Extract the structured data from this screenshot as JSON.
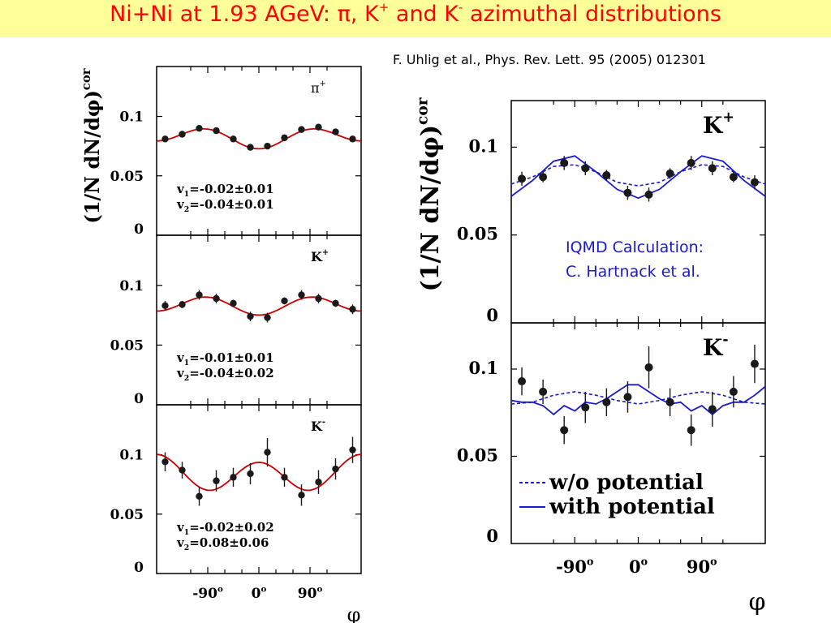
{
  "title": {
    "main": "Ni+Ni at 1.93 AGeV: π,  K",
    "k_plus_sup": "+",
    "middle": " and K",
    "k_minus_sup": "-",
    "tail": " azimuthal distributions"
  },
  "citation": "F. Uhlig et al., Phys. Rev. Lett. 95 (2005) 012301",
  "colors": {
    "title_bg": "#ffff99",
    "title_text": "#ff0000",
    "fit": "#cc0000",
    "model": "#1a1acc",
    "points": "#1a1a1a"
  },
  "chart_data": [
    {
      "type": "scatter",
      "panel": "left-pi-plus",
      "label_base": "π",
      "label_sup": "+",
      "ylabel": "(1/N dN/dφ)",
      "ylabel_sup": "cor",
      "yticks": [
        "0.1",
        "0.05",
        "0"
      ],
      "ytick_values": [
        0.1,
        0.05,
        0
      ],
      "ylim": [
        0,
        0.142
      ],
      "xlim": [
        -180,
        180
      ],
      "annotations": [
        "v",
        "1",
        "=-0.02±0.01",
        "v",
        "2",
        "=-0.04±0.01"
      ],
      "x": [
        -165,
        -135,
        -105,
        -75,
        -45,
        -15,
        15,
        45,
        75,
        105,
        135,
        165
      ],
      "values": [
        0.081,
        0.085,
        0.09,
        0.088,
        0.081,
        0.074,
        0.075,
        0.082,
        0.089,
        0.091,
        0.087,
        0.081
      ],
      "errors": [
        0.002,
        0.002,
        0.002,
        0.002,
        0.002,
        0.002,
        0.002,
        0.002,
        0.002,
        0.002,
        0.002,
        0.002
      ],
      "fit": {
        "name": "",
        "v1": -0.02,
        "v2": -0.04,
        "norm": 0.0827
      }
    },
    {
      "type": "scatter",
      "panel": "left-k-plus",
      "label_base": "K",
      "label_sup": "+",
      "yticks": [
        "0.1",
        "0.05",
        "0"
      ],
      "ytick_values": [
        0.1,
        0.05,
        0
      ],
      "ylim": [
        0,
        0.142
      ],
      "xlim": [
        -180,
        180
      ],
      "annotations": [
        "v",
        "1",
        "=-0.01±0.01",
        "v",
        "2",
        "=-0.04±0.02"
      ],
      "x": [
        -165,
        -135,
        -105,
        -75,
        -45,
        -15,
        15,
        45,
        75,
        105,
        135,
        165
      ],
      "values": [
        0.083,
        0.084,
        0.092,
        0.089,
        0.085,
        0.074,
        0.073,
        0.087,
        0.092,
        0.089,
        0.085,
        0.08
      ],
      "errors": [
        0.004,
        0.003,
        0.004,
        0.004,
        0.003,
        0.004,
        0.004,
        0.003,
        0.004,
        0.004,
        0.003,
        0.004
      ],
      "fit": {
        "name": "",
        "v1": -0.01,
        "v2": -0.04,
        "norm": 0.0835
      }
    },
    {
      "type": "scatter",
      "panel": "left-k-minus",
      "label_base": "K",
      "label_sup": "-",
      "yticks": [
        "0.1",
        "0.05",
        "0"
      ],
      "ytick_values": [
        0.1,
        0.05,
        0
      ],
      "ylim": [
        0,
        0.142
      ],
      "xlim": [
        -180,
        180
      ],
      "xticks": [
        "-90",
        "0",
        "90"
      ],
      "xtick_values": [
        -90,
        0,
        90
      ],
      "xtick_sup": "o",
      "xlabel": "φ",
      "annotations": [
        "v",
        "1",
        "=-0.02±0.02",
        "v",
        "2",
        "=0.08±0.06"
      ],
      "x": [
        -165,
        -135,
        -105,
        -75,
        -45,
        -15,
        15,
        45,
        75,
        105,
        135,
        165
      ],
      "values": [
        0.094,
        0.087,
        0.065,
        0.078,
        0.081,
        0.084,
        0.102,
        0.081,
        0.066,
        0.077,
        0.088,
        0.104
      ],
      "errors": [
        0.008,
        0.007,
        0.008,
        0.009,
        0.008,
        0.009,
        0.012,
        0.008,
        0.009,
        0.01,
        0.009,
        0.011
      ],
      "fit": {
        "name": "",
        "v1": -0.02,
        "v2": 0.08,
        "norm": 0.0835
      }
    },
    {
      "type": "line",
      "panel": "right-k-plus",
      "label_base": "K",
      "label_sup": "+",
      "ylabel": "(1/N dN/dφ)",
      "ylabel_sup": "cor",
      "yticks": [
        "0.1",
        "0.05",
        "0"
      ],
      "ytick_values": [
        0.1,
        0.05,
        0
      ],
      "ylim": [
        0,
        0.1265
      ],
      "xlim": [
        -180,
        180
      ],
      "annotations": [
        "IQMD Calculation:",
        "C. Hartnack et al."
      ],
      "x": [
        -165,
        -135,
        -105,
        -75,
        -45,
        -15,
        15,
        45,
        75,
        105,
        135,
        165
      ],
      "values": [
        0.082,
        0.083,
        0.091,
        0.088,
        0.084,
        0.074,
        0.073,
        0.085,
        0.091,
        0.088,
        0.083,
        0.08
      ],
      "errors": [
        0.004,
        0.003,
        0.004,
        0.004,
        0.003,
        0.004,
        0.004,
        0.003,
        0.004,
        0.004,
        0.003,
        0.004
      ],
      "series": [
        {
          "name": "w/o potential",
          "style": "dashed",
          "x": [
            -180,
            -150,
            -120,
            -90,
            -60,
            -30,
            0,
            30,
            60,
            90,
            120,
            150,
            180
          ],
          "values": [
            0.079,
            0.083,
            0.089,
            0.09,
            0.086,
            0.08,
            0.078,
            0.08,
            0.086,
            0.09,
            0.089,
            0.083,
            0.079
          ]
        },
        {
          "name": "with potential",
          "style": "solid",
          "x": [
            -180,
            -150,
            -120,
            -90,
            -60,
            -30,
            0,
            30,
            60,
            90,
            120,
            150,
            180
          ],
          "values": [
            0.072,
            0.081,
            0.092,
            0.095,
            0.086,
            0.076,
            0.071,
            0.076,
            0.086,
            0.095,
            0.092,
            0.081,
            0.072
          ]
        }
      ]
    },
    {
      "type": "line",
      "panel": "right-k-minus",
      "label_base": "K",
      "label_sup": "-",
      "yticks": [
        "0.1",
        "0.05",
        "0"
      ],
      "ytick_values": [
        0.1,
        0.05,
        0
      ],
      "ylim": [
        0,
        0.1265
      ],
      "xlim": [
        -180,
        180
      ],
      "xticks": [
        "-90",
        "0",
        "90"
      ],
      "xtick_values": [
        -90,
        0,
        90
      ],
      "xtick_sup": "o",
      "xlabel": "φ",
      "legend": [
        "w/o potential",
        "with potential"
      ],
      "legend_placement": "bottom-left",
      "x": [
        -165,
        -135,
        -105,
        -75,
        -45,
        -15,
        15,
        45,
        75,
        105,
        135,
        165
      ],
      "values": [
        0.093,
        0.087,
        0.065,
        0.078,
        0.081,
        0.084,
        0.101,
        0.081,
        0.065,
        0.077,
        0.087,
        0.103
      ],
      "errors": [
        0.008,
        0.007,
        0.008,
        0.009,
        0.008,
        0.009,
        0.012,
        0.008,
        0.009,
        0.01,
        0.009,
        0.011
      ],
      "series": [
        {
          "name": "w/o potential",
          "style": "dashed",
          "x": [
            -180,
            -150,
            -120,
            -90,
            -60,
            -30,
            0,
            30,
            60,
            90,
            120,
            150,
            180
          ],
          "values": [
            0.08,
            0.081,
            0.085,
            0.087,
            0.085,
            0.082,
            0.08,
            0.082,
            0.085,
            0.087,
            0.085,
            0.081,
            0.08
          ]
        },
        {
          "name": "with potential",
          "style": "solid",
          "x": [
            -180,
            -165,
            -150,
            -135,
            -120,
            -105,
            -90,
            -75,
            -60,
            -45,
            -30,
            -15,
            0,
            15,
            30,
            45,
            60,
            75,
            90,
            105,
            120,
            135,
            150,
            165,
            180
          ],
          "values": [
            0.082,
            0.081,
            0.081,
            0.079,
            0.074,
            0.079,
            0.076,
            0.081,
            0.08,
            0.083,
            0.087,
            0.091,
            0.091,
            0.087,
            0.083,
            0.08,
            0.081,
            0.076,
            0.079,
            0.074,
            0.079,
            0.081,
            0.081,
            0.085,
            0.09
          ]
        }
      ]
    }
  ]
}
